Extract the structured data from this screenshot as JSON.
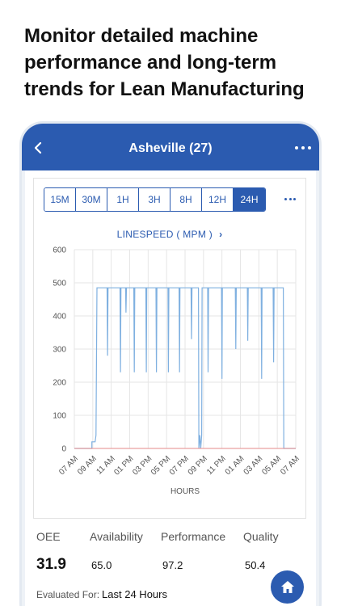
{
  "headline": "Monitor detailed machine performance and long-term trends for Lean Manufacturing",
  "appbar": {
    "title": "Asheville (27)"
  },
  "ranges": [
    {
      "label": "15M",
      "active": false
    },
    {
      "label": "30M",
      "active": false
    },
    {
      "label": "1H",
      "active": false
    },
    {
      "label": "3H",
      "active": false
    },
    {
      "label": "8H",
      "active": false
    },
    {
      "label": "12H",
      "active": false
    },
    {
      "label": "24H",
      "active": true
    }
  ],
  "metric": {
    "title": "LINESPEED ( MPM )",
    "chevron": "›"
  },
  "colors": {
    "primary": "#2b5bb0",
    "series": "#7fb0e0",
    "baseline": "#e58a8a"
  },
  "chart_data": {
    "type": "line",
    "xlabel": "HOURS",
    "ylabel": "",
    "ylim": [
      0,
      600
    ],
    "yticks": [
      0,
      100,
      200,
      300,
      400,
      500,
      600
    ],
    "xlim": [
      0,
      24
    ],
    "xticks": [
      {
        "x": 0,
        "label": "07 AM"
      },
      {
        "x": 2,
        "label": "09 AM"
      },
      {
        "x": 4,
        "label": "11 AM"
      },
      {
        "x": 6,
        "label": "01 PM"
      },
      {
        "x": 8,
        "label": "03 PM"
      },
      {
        "x": 10,
        "label": "05 PM"
      },
      {
        "x": 12,
        "label": "07 PM"
      },
      {
        "x": 14,
        "label": "09 PM"
      },
      {
        "x": 16,
        "label": "11 PM"
      },
      {
        "x": 18,
        "label": "01 AM"
      },
      {
        "x": 20,
        "label": "03 AM"
      },
      {
        "x": 22,
        "label": "05 AM"
      },
      {
        "x": 24,
        "label": "07 AM"
      }
    ],
    "series": [
      {
        "values": [
          [
            0,
            0
          ],
          [
            1.9,
            0
          ],
          [
            1.9,
            20
          ],
          [
            2.25,
            20
          ],
          [
            2.35,
            40
          ],
          [
            2.45,
            485
          ],
          [
            3.55,
            485
          ],
          [
            3.6,
            280
          ],
          [
            3.65,
            485
          ],
          [
            4.95,
            485
          ],
          [
            5.0,
            230
          ],
          [
            5.05,
            485
          ],
          [
            5.55,
            485
          ],
          [
            5.6,
            410
          ],
          [
            5.65,
            485
          ],
          [
            6.45,
            485
          ],
          [
            6.5,
            230
          ],
          [
            6.55,
            485
          ],
          [
            7.75,
            485
          ],
          [
            7.8,
            230
          ],
          [
            7.85,
            485
          ],
          [
            8.85,
            485
          ],
          [
            8.9,
            230
          ],
          [
            8.95,
            485
          ],
          [
            10.15,
            485
          ],
          [
            10.2,
            230
          ],
          [
            10.25,
            485
          ],
          [
            11.35,
            485
          ],
          [
            11.4,
            230
          ],
          [
            11.45,
            485
          ],
          [
            12.65,
            485
          ],
          [
            12.7,
            330
          ],
          [
            12.75,
            485
          ],
          [
            13.45,
            485
          ],
          [
            13.5,
            0
          ],
          [
            13.6,
            40
          ],
          [
            13.7,
            0
          ],
          [
            13.8,
            40
          ],
          [
            13.85,
            485
          ],
          [
            14.45,
            485
          ],
          [
            14.5,
            230
          ],
          [
            14.55,
            485
          ],
          [
            15.95,
            485
          ],
          [
            16.0,
            210
          ],
          [
            16.05,
            485
          ],
          [
            17.45,
            485
          ],
          [
            17.5,
            300
          ],
          [
            17.55,
            485
          ],
          [
            18.75,
            485
          ],
          [
            18.8,
            325
          ],
          [
            18.85,
            485
          ],
          [
            20.25,
            485
          ],
          [
            20.3,
            210
          ],
          [
            20.35,
            485
          ],
          [
            21.55,
            485
          ],
          [
            21.6,
            260
          ],
          [
            21.65,
            485
          ],
          [
            22.65,
            485
          ],
          [
            22.7,
            0
          ],
          [
            24,
            0
          ]
        ]
      },
      {
        "values": [
          [
            0,
            0
          ],
          [
            24,
            0
          ]
        ]
      }
    ]
  },
  "stats": {
    "oee": {
      "label": "OEE",
      "value": "31.9"
    },
    "availability": {
      "label": "Availability",
      "value": "65.0"
    },
    "performance": {
      "label": "Performance",
      "value": "97.2"
    },
    "quality": {
      "label": "Quality",
      "value": "50.4"
    }
  },
  "evaluated": {
    "label": "Evaluated For:",
    "value": "Last 24 Hours"
  },
  "icons": {
    "back": "chevron-left-icon",
    "more": "more-horizontal-icon",
    "home": "home-icon"
  }
}
